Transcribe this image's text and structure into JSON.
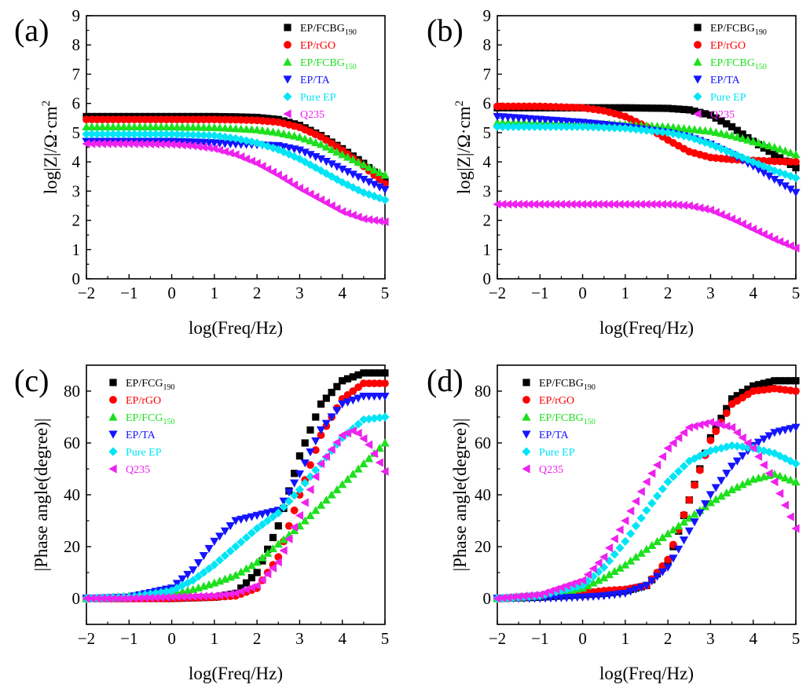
{
  "figure": {
    "colors": {
      "black": "#000000",
      "red": "#ff0000",
      "green": "#1ee01e",
      "blue": "#1414ff",
      "cyan": "#00e5f5",
      "magenta": "#ee22ee"
    }
  },
  "chart_data": [
    {
      "panel": "(a)",
      "type": "scatter",
      "xlabel": "log(Freq/Hz)",
      "ylabel": "log|Z|/Ω·cm²",
      "ylabel_main": "log|Z|/Ω·cm",
      "ylabel_sup": "2",
      "xlim": [
        -2,
        5
      ],
      "ylim": [
        0,
        9
      ],
      "xticks": [
        "−2",
        "−1",
        "0",
        "1",
        "2",
        "3",
        "4",
        "5"
      ],
      "yticks": [
        "0",
        "1",
        "2",
        "3",
        "4",
        "5",
        "6",
        "7",
        "8",
        "9"
      ],
      "legend_position": "top-right",
      "series": [
        {
          "name": "EP/FCBG190",
          "label": "EP/FCBG",
          "subscript": "190",
          "color": "black",
          "marker": "square",
          "x": [
            -2,
            -1,
            0,
            1,
            1.5,
            2,
            2.5,
            3,
            3.5,
            4,
            4.5,
            5
          ],
          "y": [
            5.55,
            5.55,
            5.55,
            5.55,
            5.54,
            5.52,
            5.45,
            5.25,
            4.9,
            4.45,
            3.95,
            3.35
          ]
        },
        {
          "name": "EP/rGO",
          "label": "EP/rGO",
          "subscript": "",
          "color": "red",
          "marker": "circle",
          "x": [
            -2,
            -1,
            0,
            1,
            1.5,
            2,
            2.5,
            3,
            3.5,
            4,
            4.5,
            5
          ],
          "y": [
            5.45,
            5.45,
            5.45,
            5.45,
            5.44,
            5.42,
            5.36,
            5.18,
            4.86,
            4.4,
            3.85,
            3.25
          ]
        },
        {
          "name": "EP/FCBG150",
          "label": "EP/FCBG",
          "subscript": "150",
          "color": "green",
          "marker": "triangle-up",
          "x": [
            -2,
            -1,
            0,
            1,
            2,
            2.5,
            3,
            3.5,
            4,
            4.5,
            5
          ],
          "y": [
            5.2,
            5.2,
            5.2,
            5.18,
            5.1,
            5.0,
            4.85,
            4.6,
            4.25,
            3.9,
            3.55
          ]
        },
        {
          "name": "EP/TA",
          "label": "EP/TA",
          "subscript": "",
          "color": "blue",
          "marker": "triangle-down",
          "x": [
            -2,
            -1,
            0,
            1,
            1.5,
            2,
            2.5,
            3,
            3.5,
            4,
            4.5,
            5
          ],
          "y": [
            4.7,
            4.7,
            4.7,
            4.65,
            4.6,
            4.58,
            4.55,
            4.4,
            4.1,
            3.75,
            3.4,
            3.05
          ]
        },
        {
          "name": "Pure EP",
          "label": "Pure EP",
          "subscript": "",
          "color": "cyan",
          "marker": "diamond",
          "x": [
            -2,
            -1,
            0,
            1,
            1.5,
            2,
            2.5,
            3,
            3.5,
            4,
            4.5,
            5
          ],
          "y": [
            4.95,
            4.95,
            4.95,
            4.9,
            4.8,
            4.65,
            4.42,
            4.1,
            3.7,
            3.3,
            2.95,
            2.7
          ]
        },
        {
          "name": "Q235",
          "label": "Q235",
          "subscript": "",
          "color": "magenta",
          "marker": "triangle-left",
          "x": [
            -2,
            -1,
            0,
            0.5,
            1,
            1.5,
            2,
            2.5,
            3,
            3.5,
            4,
            4.5,
            5
          ],
          "y": [
            4.62,
            4.62,
            4.6,
            4.55,
            4.45,
            4.25,
            3.95,
            3.55,
            3.1,
            2.7,
            2.3,
            2.05,
            1.95
          ]
        }
      ]
    },
    {
      "panel": "(b)",
      "type": "scatter",
      "xlabel": "log(Freq/Hz)",
      "ylabel": "log|Z|/Ω·cm²",
      "ylabel_main": "log|Z|/Ω·cm",
      "ylabel_sup": "2",
      "xlim": [
        -2,
        5
      ],
      "ylim": [
        0,
        9
      ],
      "xticks": [
        "−2",
        "−1",
        "0",
        "1",
        "2",
        "3",
        "4",
        "5"
      ],
      "yticks": [
        "0",
        "1",
        "2",
        "3",
        "4",
        "5",
        "6",
        "7",
        "8",
        "9"
      ],
      "legend_position": "top-right",
      "series": [
        {
          "name": "EP/FCBG190",
          "label": "EP/FCBG",
          "subscript": "190",
          "color": "black",
          "marker": "square",
          "x": [
            -2,
            -1,
            0,
            1,
            2,
            2.5,
            3,
            3.5,
            4,
            4.5,
            5
          ],
          "y": [
            5.85,
            5.85,
            5.85,
            5.85,
            5.83,
            5.78,
            5.6,
            5.2,
            4.7,
            4.25,
            3.8
          ]
        },
        {
          "name": "EP/rGO",
          "label": "EP/rGO",
          "subscript": "",
          "color": "red",
          "marker": "circle",
          "x": [
            -2,
            -1,
            0,
            0.5,
            1,
            1.5,
            2,
            2.5,
            3,
            3.5,
            4,
            4.5,
            5
          ],
          "y": [
            5.9,
            5.9,
            5.85,
            5.75,
            5.55,
            5.2,
            4.75,
            4.35,
            4.15,
            4.08,
            4.05,
            4.02,
            4.0
          ]
        },
        {
          "name": "EP/FCBG150",
          "label": "EP/FCBG",
          "subscript": "150",
          "color": "green",
          "marker": "triangle-up",
          "x": [
            -2,
            -1,
            0,
            1,
            2,
            3,
            3.5,
            4,
            4.5,
            5
          ],
          "y": [
            5.35,
            5.35,
            5.32,
            5.28,
            5.2,
            5.05,
            4.9,
            4.7,
            4.5,
            4.25
          ]
        },
        {
          "name": "EP/TA",
          "label": "EP/TA",
          "subscript": "",
          "color": "blue",
          "marker": "triangle-down",
          "x": [
            -2,
            -1,
            0,
            1,
            2,
            2.5,
            3,
            3.5,
            4,
            4.5,
            5
          ],
          "y": [
            5.55,
            5.45,
            5.35,
            5.2,
            5.0,
            4.85,
            4.6,
            4.25,
            3.85,
            3.4,
            2.95
          ]
        },
        {
          "name": "Pure EP",
          "label": "Pure EP",
          "subscript": "",
          "color": "cyan",
          "marker": "diamond",
          "x": [
            -2,
            -1,
            0,
            1,
            2,
            2.5,
            3,
            3.5,
            4,
            4.5,
            5
          ],
          "y": [
            5.2,
            5.2,
            5.2,
            5.15,
            5.0,
            4.85,
            4.6,
            4.3,
            4.0,
            3.7,
            3.45
          ]
        },
        {
          "name": "Q235",
          "label": "Q235",
          "subscript": "",
          "color": "magenta",
          "marker": "triangle-left",
          "x": [
            -2,
            -1,
            0,
            1,
            2,
            2.5,
            3,
            3.5,
            4,
            4.5,
            5
          ],
          "y": [
            2.55,
            2.55,
            2.55,
            2.55,
            2.55,
            2.5,
            2.35,
            2.05,
            1.7,
            1.35,
            1.05
          ]
        }
      ]
    },
    {
      "panel": "(c)",
      "type": "scatter",
      "xlabel": "log(Freq/Hz)",
      "ylabel": "|Phase angle(degree)|",
      "ylabel_main": "|Phase angle(degree)|",
      "ylabel_sup": "",
      "xlim": [
        -2,
        5
      ],
      "ylim": [
        -10,
        90
      ],
      "xticks": [
        "−2",
        "−1",
        "0",
        "1",
        "2",
        "3",
        "4",
        "5"
      ],
      "yticks": [
        "0",
        "20",
        "40",
        "60",
        "80"
      ],
      "legend_position": "top-left",
      "series": [
        {
          "name": "EP/FCG190",
          "label": "EP/FCG",
          "subscript": "190",
          "color": "black",
          "marker": "square",
          "x": [
            -2,
            -1,
            0,
            1,
            1.5,
            2,
            2.5,
            3,
            3.5,
            4,
            4.5,
            5
          ],
          "y": [
            0,
            0,
            0,
            0.5,
            2,
            10,
            28,
            55,
            75,
            84,
            87,
            87
          ]
        },
        {
          "name": "EP/rGO",
          "label": "EP/rGO",
          "subscript": "",
          "color": "red",
          "marker": "circle",
          "x": [
            -2,
            -1,
            0,
            1,
            1.5,
            2,
            2.5,
            3,
            3.5,
            4,
            4.5,
            5
          ],
          "y": [
            0,
            0,
            0,
            0.5,
            1,
            4,
            16,
            40,
            63,
            77,
            83,
            83
          ]
        },
        {
          "name": "EP/FCG150",
          "label": "EP/FCG",
          "subscript": "150",
          "color": "green",
          "marker": "triangle-up",
          "x": [
            -2,
            -1,
            0,
            0.5,
            1,
            1.5,
            2,
            2.5,
            3,
            3.5,
            4,
            4.5,
            5
          ],
          "y": [
            0,
            1,
            2,
            3.5,
            6,
            9,
            14,
            21,
            28,
            36,
            44,
            52,
            60
          ]
        },
        {
          "name": "EP/TA",
          "label": "EP/TA",
          "subscript": "",
          "color": "blue",
          "marker": "triangle-down",
          "x": [
            -2,
            -1,
            0,
            0.5,
            1,
            1.5,
            2,
            2.5,
            3,
            3.5,
            4,
            4.5,
            5
          ],
          "y": [
            0,
            0.5,
            4,
            11,
            22,
            30,
            32,
            34,
            48,
            65,
            75,
            78,
            78
          ]
        },
        {
          "name": "Pure EP",
          "label": "Pure EP",
          "subscript": "",
          "color": "cyan",
          "marker": "diamond",
          "x": [
            -2,
            -1,
            0,
            0.5,
            1,
            1.5,
            2,
            2.5,
            3,
            3.5,
            4,
            4.5,
            5
          ],
          "y": [
            0,
            0.5,
            3,
            7,
            13,
            20,
            27,
            33,
            42,
            52,
            62,
            69,
            70
          ]
        },
        {
          "name": "Q235",
          "label": "Q235",
          "subscript": "",
          "color": "magenta",
          "marker": "triangle-left",
          "x": [
            -2,
            -1,
            0,
            1,
            1.5,
            2,
            2.5,
            3,
            3.5,
            4,
            4.3,
            4.6,
            5
          ],
          "y": [
            0,
            0,
            0.5,
            1,
            2,
            5,
            14,
            32,
            52,
            63,
            65,
            60,
            49
          ]
        }
      ]
    },
    {
      "panel": "(d)",
      "type": "scatter",
      "xlabel": "log(Freq/Hz)",
      "ylabel": "|Phase angle(degree)|",
      "ylabel_main": "|Phase angle(degree)|",
      "ylabel_sup": "",
      "xlim": [
        -2,
        5
      ],
      "ylim": [
        -10,
        90
      ],
      "xticks": [
        "−2",
        "−1",
        "0",
        "1",
        "2",
        "3",
        "4",
        "5"
      ],
      "yticks": [
        "0",
        "20",
        "40",
        "60",
        "80"
      ],
      "legend_position": "top-left",
      "series": [
        {
          "name": "EP/FCBG190",
          "label": "EP/FCBG",
          "subscript": "190",
          "color": "black",
          "marker": "square",
          "x": [
            -2,
            -1,
            0,
            0.5,
            1,
            1.5,
            2,
            2.5,
            3,
            3.5,
            4,
            4.5,
            5
          ],
          "y": [
            0,
            0.5,
            1.5,
            2,
            3,
            5,
            14,
            38,
            62,
            77,
            82,
            84,
            84
          ]
        },
        {
          "name": "EP/rGO",
          "label": "EP/rGO",
          "subscript": "",
          "color": "red",
          "marker": "circle",
          "x": [
            -2,
            -1,
            0,
            0.5,
            1,
            1.5,
            2,
            2.5,
            3,
            3.5,
            4,
            4.5,
            5
          ],
          "y": [
            0,
            1,
            2,
            3,
            3.5,
            5,
            15,
            38,
            61,
            75,
            80,
            81,
            80
          ]
        },
        {
          "name": "EP/FCBG150",
          "label": "EP/FCBG",
          "subscript": "150",
          "color": "green",
          "marker": "triangle-up",
          "x": [
            -2,
            -1,
            0,
            0.5,
            1,
            1.5,
            2,
            2.5,
            3,
            3.5,
            4,
            4.5,
            5
          ],
          "y": [
            0,
            1,
            4,
            8,
            13,
            19,
            25,
            31,
            37,
            42,
            46,
            48,
            45
          ]
        },
        {
          "name": "EP/TA",
          "label": "EP/TA",
          "subscript": "",
          "color": "blue",
          "marker": "triangle-down",
          "x": [
            -2,
            -1,
            0,
            0.5,
            1,
            1.5,
            2,
            2.5,
            3,
            3.5,
            4,
            4.5,
            5
          ],
          "y": [
            0,
            0,
            0.5,
            1,
            2,
            5,
            12,
            26,
            40,
            51,
            59,
            64,
            66
          ]
        },
        {
          "name": "Pure EP",
          "label": "Pure EP",
          "subscript": "",
          "color": "cyan",
          "marker": "diamond",
          "x": [
            -2,
            -1,
            0,
            0.5,
            1,
            1.5,
            2,
            2.5,
            3,
            3.5,
            4,
            4.5,
            5
          ],
          "y": [
            0,
            1,
            5,
            12,
            22,
            34,
            45,
            53,
            57,
            59,
            58,
            56,
            52
          ]
        },
        {
          "name": "Q235",
          "label": "Q235",
          "subscript": "",
          "color": "magenta",
          "marker": "triangle-left",
          "x": [
            -2,
            -1,
            0,
            0.5,
            1,
            1.5,
            2,
            2.5,
            3,
            3.5,
            4,
            4.5,
            5
          ],
          "y": [
            0,
            1.5,
            7,
            16,
            30,
            45,
            58,
            66,
            68,
            66,
            58,
            45,
            27
          ]
        }
      ]
    }
  ]
}
